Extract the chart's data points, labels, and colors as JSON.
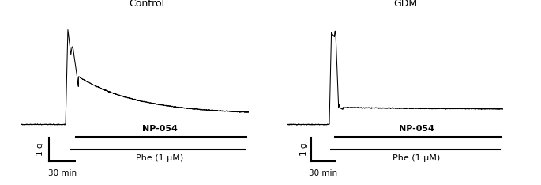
{
  "title_left": "Control",
  "title_right": "GDM",
  "label_np054": "NP-054",
  "label_phe": "Phe (1 μM)",
  "label_scale_v": "1 g",
  "label_scale_h": "30 min",
  "bg_color": "#ffffff",
  "line_color": "#000000",
  "title_fontsize": 9,
  "annotation_fontsize": 8,
  "scale_fontsize": 7.5
}
